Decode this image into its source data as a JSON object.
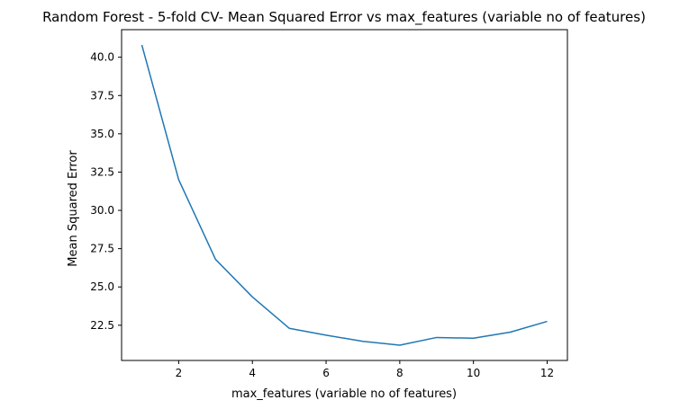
{
  "chart_data": {
    "type": "line",
    "title": "Random Forest - 5-fold CV- Mean Squared Error vs max_features (variable no of features)",
    "xlabel": "max_features (variable no of features)",
    "ylabel": "Mean Squared Error",
    "x_ticks": [
      2,
      4,
      6,
      8,
      10,
      12
    ],
    "y_ticks": [
      22.5,
      25.0,
      27.5,
      30.0,
      32.5,
      35.0,
      37.5,
      40.0
    ],
    "y_tick_labels": [
      "22.5",
      "25.0",
      "27.5",
      "30.0",
      "32.5",
      "35.0",
      "37.5",
      "40.0"
    ],
    "xlim": [
      0.45,
      12.55
    ],
    "ylim": [
      20.2,
      41.8
    ],
    "grid": false,
    "series": [
      {
        "color": "#1f77b4",
        "x": [
          1,
          2,
          3,
          4,
          5,
          6,
          7,
          8,
          9,
          10,
          11,
          12
        ],
        "y": [
          40.8,
          32.0,
          26.8,
          24.35,
          22.3,
          21.85,
          21.45,
          21.2,
          21.7,
          21.65,
          22.05,
          22.75
        ]
      }
    ]
  }
}
